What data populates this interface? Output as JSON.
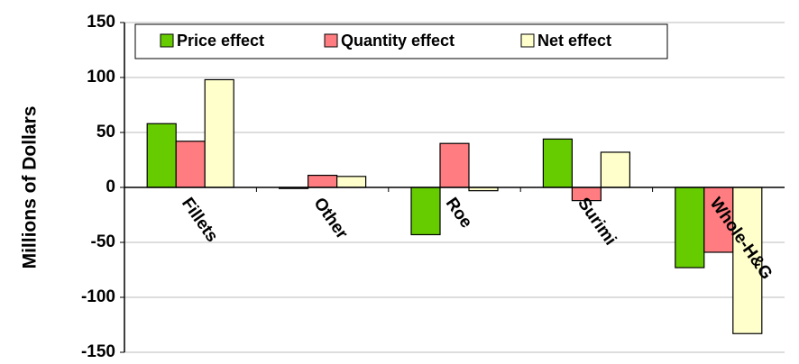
{
  "chart_data": {
    "type": "bar",
    "ylabel": "Millions of Dollars",
    "categories": [
      "Fillets",
      "Other",
      "Roe",
      "Surimi",
      "Whole-H&G"
    ],
    "series": [
      {
        "name": "Price effect",
        "color": "#66cc00",
        "values": [
          58,
          -1,
          -43,
          44,
          -73
        ]
      },
      {
        "name": "Quantity effect",
        "color": "#ff7c80",
        "values": [
          42,
          11,
          40,
          -12,
          -59
        ]
      },
      {
        "name": "Net effect",
        "color": "#ffffcc",
        "values": [
          98,
          10,
          -3,
          32,
          -133
        ]
      }
    ],
    "ylim": [
      -150,
      150
    ],
    "yticks": [
      -150,
      -100,
      -50,
      0,
      50,
      100,
      150
    ],
    "grid": true,
    "legend": "top"
  }
}
